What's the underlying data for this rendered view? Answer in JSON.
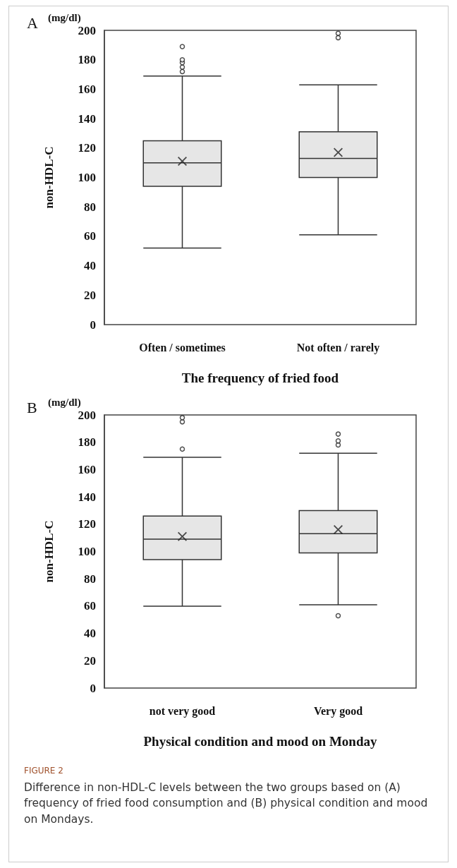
{
  "chart_data": [
    {
      "type": "box",
      "xlabel": "The frequency of fried food",
      "ylabel": "non-HDL-C",
      "annotations": [
        "A",
        "(mg/dl)"
      ],
      "categories": [
        "Often / sometimes",
        "Not often / rarely"
      ],
      "color": "#e6e6e6",
      "ylim": [
        0,
        200
      ],
      "yticks": [
        0,
        20,
        40,
        60,
        80,
        100,
        120,
        140,
        160,
        180,
        200
      ],
      "grid": false,
      "boxes": [
        {
          "low": 52,
          "q1": 94,
          "median": 110,
          "q3": 125,
          "high": 169,
          "mean": 111,
          "outliers": [
            172,
            175,
            178,
            180,
            189
          ]
        },
        {
          "low": 61,
          "q1": 100,
          "median": 113,
          "q3": 131,
          "high": 163,
          "mean": 117,
          "outliers": [
            195,
            198
          ]
        }
      ]
    },
    {
      "type": "box",
      "xlabel": "Physical condition and mood on Monday",
      "ylabel": "non-HDL-C",
      "annotations": [
        "B",
        "(mg/dl)",
        "FIGURE 2",
        "Difference in non-HDL-C levels between the two groups based on (A) frequency of fried food consumption and (B) physical condition and mood on Mondays."
      ],
      "categories": [
        "not very good",
        "Very good"
      ],
      "color": "#e6e6e6",
      "ylim": [
        0,
        200
      ],
      "yticks": [
        0,
        20,
        40,
        60,
        80,
        100,
        120,
        140,
        160,
        180,
        200
      ],
      "grid": false,
      "boxes": [
        {
          "low": 60,
          "q1": 94,
          "median": 109,
          "q3": 126,
          "high": 169,
          "mean": 111,
          "outliers": [
            175,
            195,
            198
          ]
        },
        {
          "low": 61,
          "q1": 99,
          "median": 113,
          "q3": 130,
          "high": 172,
          "mean": 116,
          "outliers": [
            53,
            178,
            181,
            186
          ]
        }
      ]
    }
  ]
}
